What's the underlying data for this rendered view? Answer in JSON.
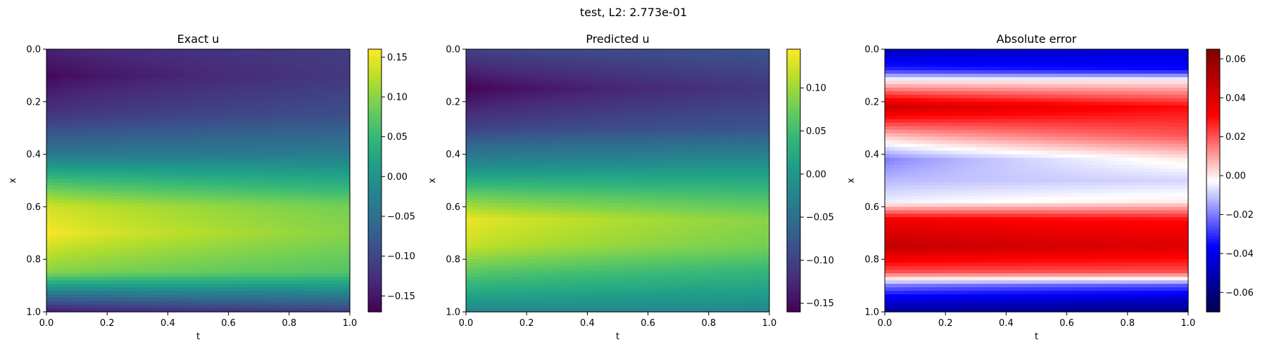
{
  "figure": {
    "suptitle": "test, L2: 2.773e-01"
  },
  "chart_data": [
    {
      "type": "heatmap",
      "title": "Exact u",
      "xlabel": "t",
      "ylabel": "x",
      "xlim": [
        0.0,
        1.0
      ],
      "ylim": [
        1.0,
        0.0
      ],
      "xticks": [
        "0.0",
        "0.2",
        "0.4",
        "0.6",
        "0.8",
        "1.0"
      ],
      "yticks": [
        "0.0",
        "0.2",
        "0.4",
        "0.6",
        "0.8",
        "1.0"
      ],
      "colormap": "viridis",
      "colorbar": {
        "range": [
          -0.17,
          0.16
        ],
        "ticks": [
          -0.15,
          -0.1,
          -0.05,
          0.0,
          0.05,
          0.1,
          0.15
        ],
        "tick_labels": [
          "−0.15",
          "−0.10",
          "−0.05",
          "0.00",
          "0.05",
          "0.10",
          "0.15"
        ]
      },
      "profile_x": [
        0.0,
        0.1,
        0.25,
        0.4,
        0.5,
        0.6,
        0.7,
        0.85,
        0.92,
        1.0
      ],
      "profile_t0": [
        -0.14,
        -0.165,
        -0.12,
        -0.04,
        0.06,
        0.14,
        0.16,
        0.1,
        -0.02,
        -0.15
      ],
      "profile_t1": [
        -0.11,
        -0.115,
        -0.09,
        -0.03,
        0.03,
        0.09,
        0.1,
        0.07,
        -0.01,
        -0.11
      ]
    },
    {
      "type": "heatmap",
      "title": "Predicted u",
      "xlabel": "t",
      "ylabel": "x",
      "xlim": [
        0.0,
        1.0
      ],
      "ylim": [
        1.0,
        0.0
      ],
      "xticks": [
        "0.0",
        "0.2",
        "0.4",
        "0.6",
        "0.8",
        "1.0"
      ],
      "yticks": [
        "0.0",
        "0.2",
        "0.4",
        "0.6",
        "0.8",
        "1.0"
      ],
      "colormap": "viridis",
      "colorbar": {
        "range": [
          -0.16,
          0.145
        ],
        "ticks": [
          -0.15,
          -0.1,
          -0.05,
          0.0,
          0.05,
          0.1
        ],
        "tick_labels": [
          "−0.15",
          "−0.10",
          "−0.05",
          "0.00",
          "0.05",
          "0.10"
        ]
      },
      "profile_x": [
        0.0,
        0.15,
        0.3,
        0.45,
        0.55,
        0.65,
        0.75,
        0.9,
        1.0
      ],
      "profile_t0": [
        -0.1,
        -0.16,
        -0.1,
        -0.01,
        0.07,
        0.14,
        0.12,
        0.04,
        -0.02
      ],
      "profile_t1": [
        -0.08,
        -0.11,
        -0.08,
        0.0,
        0.05,
        0.09,
        0.08,
        0.02,
        -0.02
      ]
    },
    {
      "type": "heatmap",
      "title": "Absolute error",
      "xlabel": "t",
      "ylabel": "x",
      "xlim": [
        0.0,
        1.0
      ],
      "ylim": [
        1.0,
        0.0
      ],
      "xticks": [
        "0.0",
        "0.2",
        "0.4",
        "0.6",
        "0.8",
        "1.0"
      ],
      "yticks": [
        "0.0",
        "0.2",
        "0.4",
        "0.6",
        "0.8",
        "1.0"
      ],
      "colormap": "seismic",
      "colorbar": {
        "range": [
          -0.07,
          0.065
        ],
        "ticks": [
          -0.06,
          -0.04,
          -0.02,
          0.0,
          0.02,
          0.04,
          0.06
        ],
        "tick_labels": [
          "−0.06",
          "−0.04",
          "−0.02",
          "0.00",
          "0.02",
          "0.04",
          "0.06"
        ]
      },
      "profile_x": [
        0.0,
        0.08,
        0.12,
        0.22,
        0.33,
        0.42,
        0.5,
        0.58,
        0.65,
        0.75,
        0.85,
        0.9,
        0.95,
        1.0
      ],
      "profile_t0": [
        -0.05,
        -0.03,
        0.0,
        0.045,
        0.005,
        -0.02,
        -0.012,
        -0.005,
        0.035,
        0.048,
        0.02,
        -0.02,
        -0.04,
        -0.055
      ],
      "profile_t1": [
        -0.045,
        -0.035,
        0.0,
        0.03,
        0.02,
        0.0,
        -0.008,
        0.0,
        0.03,
        0.04,
        0.02,
        -0.025,
        -0.045,
        -0.06
      ]
    }
  ]
}
